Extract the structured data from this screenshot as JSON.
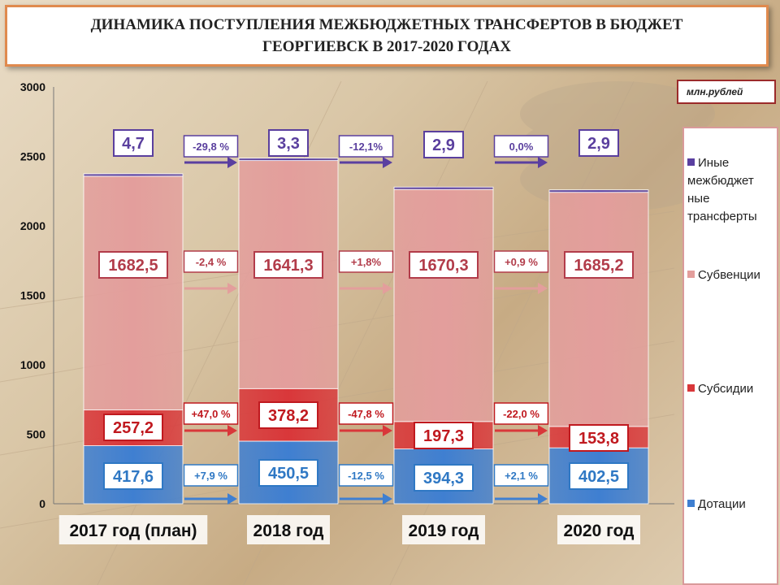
{
  "title": "ДИНАМИКА ПОСТУПЛЕНИЯ МЕЖБЮДЖЕТНЫХ ТРАНСФЕРТОВ В БЮДЖЕТ ГЕОРГИЕВСК В 2017-2020 ГОДАХ",
  "units": "млн.рублей",
  "colors": {
    "dotacii": "#3f7fd1",
    "subsidii": "#d9373a",
    "subvencii": "#e39e9c",
    "inye": "#5a3fa0",
    "dotacii_label": "#2f78c4",
    "subsidii_label": "#c0191f",
    "subvencii_label": "#b23c4a",
    "inye_label": "#5a3f9e"
  },
  "chart_data": {
    "type": "bar",
    "stacked": true,
    "categories": [
      "2017 год (план)",
      "2018 год",
      "2019 год",
      "2020 год"
    ],
    "series": [
      {
        "name": "Дотации",
        "key": "dotacii",
        "values": [
          417.6,
          450.5,
          394.3,
          402.5
        ],
        "labels": [
          "417,6",
          "450,5",
          "394,3",
          "402,5"
        ]
      },
      {
        "name": "Субсидии",
        "key": "subsidii",
        "values": [
          257.2,
          378.2,
          197.3,
          153.8
        ],
        "labels": [
          "257,2",
          "378,2",
          "197,3",
          "153,8"
        ]
      },
      {
        "name": "Субвенции",
        "key": "subvencii",
        "values": [
          1682.5,
          1641.3,
          1670.3,
          1685.2
        ],
        "labels": [
          "1682,5",
          "1641,3",
          "1670,3",
          "1685,2"
        ]
      },
      {
        "name": "Иные межбюджетные трансферты",
        "key": "inye",
        "values": [
          4.7,
          3.3,
          2.9,
          2.9
        ],
        "labels": [
          "4,7",
          "3,3",
          "2,9",
          "2,9"
        ]
      }
    ],
    "changes": {
      "dotacii": [
        "+7,9 %",
        "-12,5 %",
        "+2,1 %"
      ],
      "subsidii": [
        "+47,0 %",
        "-47,8 %",
        "-22,0 %"
      ],
      "subvencii": [
        "-2,4 %",
        "+1,8%",
        "+0,9 %"
      ],
      "inye": [
        "-29,8 %",
        "-12,1%",
        "0,0%"
      ]
    },
    "ylim": [
      0,
      3000
    ],
    "yticks": [
      "0",
      "500",
      "1000",
      "1500",
      "2000",
      "2500",
      "3000"
    ],
    "grid": false,
    "legend": "right"
  },
  "legend": [
    {
      "key": "inye",
      "label": "Иные межбюджет ные трансферты"
    },
    {
      "key": "subvencii",
      "label": "Субвенции"
    },
    {
      "key": "subsidii",
      "label": "Субсидии"
    },
    {
      "key": "dotacii",
      "label": "Дотации"
    }
  ]
}
